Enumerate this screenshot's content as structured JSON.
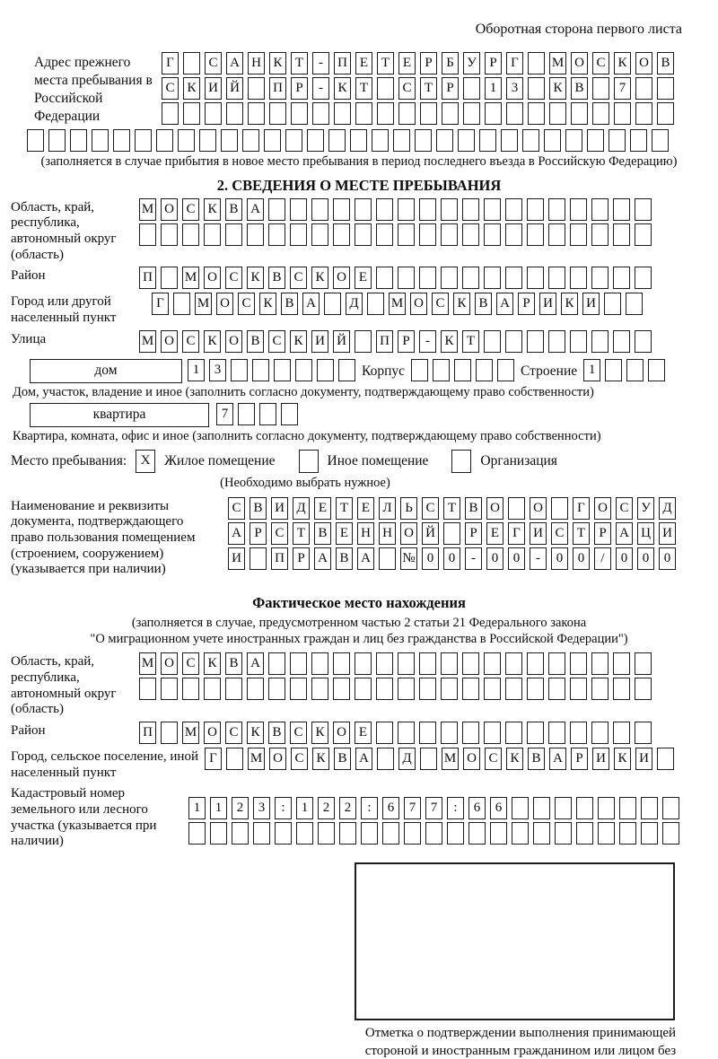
{
  "header": {
    "note": "Оборотная сторона первого листа"
  },
  "prev_address": {
    "label": "Адрес прежнего места пребывания в Российской Федерации",
    "row1": "Г САНКТ-ПЕТЕРБУРГ МОСКОВ",
    "row2": "СКИЙ ПР-КТ СТР 13 КВ 7",
    "row3": "",
    "row4": "",
    "note": "(заполняется в случае прибытия в новое место пребывания в период последнего въезда в Российскую Федерацию)"
  },
  "s2": {
    "title": "2. СВЕДЕНИЯ О МЕСТЕ ПРЕБЫВАНИЯ",
    "region": {
      "label": "Область, край, республика, автономный округ (область)",
      "row1": "МОСКВА",
      "row2": ""
    },
    "district": {
      "label": "Район",
      "row": "П МОСКВСКОЕ"
    },
    "city": {
      "label": "Город или другой населенный пункт",
      "row": "Г МОСКВА Д МОСКВАРИКИ"
    },
    "street": {
      "label": "Улица",
      "row": "МОСКОВСКИЙ ПР-КТ"
    },
    "house": {
      "box_label": "дом",
      "number": "13",
      "korpus_label": "Корпус",
      "korpus": "",
      "stroenie_label": "Строение",
      "stroenie": "1",
      "note": "Дом, участок, владение и иное (заполнить согласно документу, подтверждающему право собственности)"
    },
    "apartment": {
      "box_label": "квартира",
      "number": "7",
      "note": "Квартира, комната, офис и иное (заполнить согласно документу, подтверждающему право собственности)"
    },
    "stay": {
      "label": "Место пребывания:",
      "options": [
        {
          "label": "Жилое помещение",
          "mark": "X"
        },
        {
          "label": "Иное помещение",
          "mark": ""
        },
        {
          "label": "Организация",
          "mark": ""
        }
      ],
      "note": "(Необходимо выбрать нужное)"
    },
    "document": {
      "label": "Наименование и реквизиты документа, подтверждающего право пользования помещением (строением, сооружением) (указывается при наличии)",
      "row1": "СВИДЕТЕЛЬСТВО О ГОСУД",
      "row2": "АРСТВЕННОЙ РЕГИСТРАЦИ",
      "row3": "И ПРАВА №00-00-00/000"
    }
  },
  "actual": {
    "title": "Фактическое место нахождения",
    "note1": "(заполняется в случае, предусмотренном частью 2 статьи 21 Федерального закона",
    "note2": "\"О миграционном учете иностранных граждан и лиц без гражданства в Российской Федерации\")",
    "region": {
      "label": "Область, край, республика, автономный округ (область)",
      "row1": "МОСКВА",
      "row2": ""
    },
    "district": {
      "label": "Район",
      "row": "П МОСКВСКОЕ"
    },
    "city": {
      "label": "Город, сельское поселение, иной населенный пункт",
      "row": "Г МОСКВА Д МОСКВАРИКИ"
    },
    "cadastral": {
      "label": "Кадастровый номер земельного или лесного участка (указывается при наличии)",
      "row1": "1123:122:677:66",
      "row2": ""
    }
  },
  "confirmation": {
    "note": "Отметка о подтверждении выполнения принимающей стороной и иностранным гражданином или лицом без гражданства действий, необходимых для его постановки на учет по месту пребывания"
  }
}
